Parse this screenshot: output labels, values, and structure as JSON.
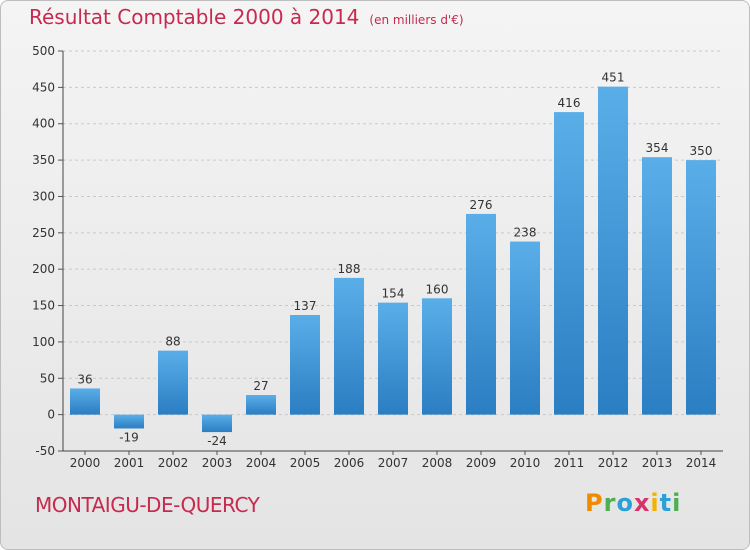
{
  "header": {
    "title": "Résultat Comptable 2000 à 2014",
    "subtitle": "(en milliers d'€)"
  },
  "footer": {
    "commune": "MONTAIGU-DE-QUERCY",
    "logo": [
      "P",
      "r",
      "o",
      "x",
      "i",
      "t",
      "i"
    ]
  },
  "colors": {
    "accent": "#c8294f",
    "bar_top": "#5aaee8",
    "bar_bottom": "#2a7ec2",
    "logo": [
      "#f08a00",
      "#4caf50",
      "#29a0d8",
      "#d8326a",
      "#f0b400",
      "#29a0d8",
      "#4caf50"
    ]
  },
  "chart_data": {
    "type": "bar",
    "categories": [
      "2000",
      "2001",
      "2002",
      "2003",
      "2004",
      "2005",
      "2006",
      "2007",
      "2008",
      "2009",
      "2010",
      "2011",
      "2012",
      "2013",
      "2014"
    ],
    "values": [
      36,
      -19,
      88,
      -24,
      27,
      137,
      188,
      154,
      160,
      276,
      238,
      416,
      451,
      354,
      350
    ],
    "data_labels": [
      "36",
      "-19",
      "88",
      "-24",
      "27",
      "137",
      "188",
      "154",
      "160",
      "276",
      "238",
      "416",
      "451",
      "354",
      "350"
    ],
    "ylim": [
      -50,
      500
    ],
    "yticks": [
      -50,
      0,
      50,
      100,
      150,
      200,
      250,
      300,
      350,
      400,
      450,
      500
    ],
    "grid": true,
    "legend": "none"
  }
}
